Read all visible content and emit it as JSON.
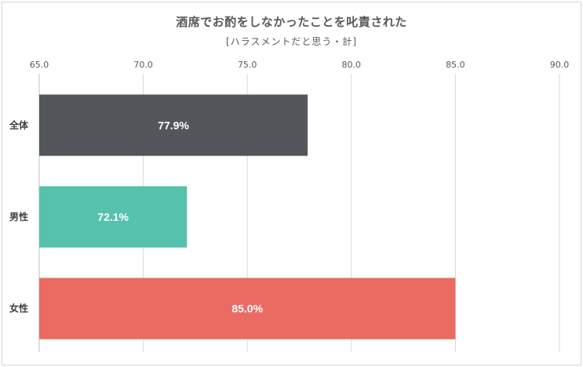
{
  "chart_data": {
    "type": "bar",
    "orientation": "horizontal",
    "title": "酒席でお酌をしなかったことを叱責された",
    "subtitle": "[ハラスメントだと思う・計]",
    "categories": [
      "全体",
      "男性",
      "女性"
    ],
    "values": [
      77.9,
      72.1,
      85.0
    ],
    "value_labels": [
      "77.9%",
      "72.1%",
      "85.0%"
    ],
    "bar_colors": [
      "#53565a",
      "#56c2ae",
      "#ea6b62"
    ],
    "xlim": [
      65.0,
      90.0
    ],
    "xticks": [
      65.0,
      70.0,
      75.0,
      80.0,
      85.0,
      90.0
    ],
    "xtick_labels": [
      "65.0",
      "70.0",
      "75.0",
      "80.0",
      "85.0",
      "90.0"
    ],
    "xlabel": "",
    "ylabel": "",
    "grid": true,
    "legend": "none"
  }
}
